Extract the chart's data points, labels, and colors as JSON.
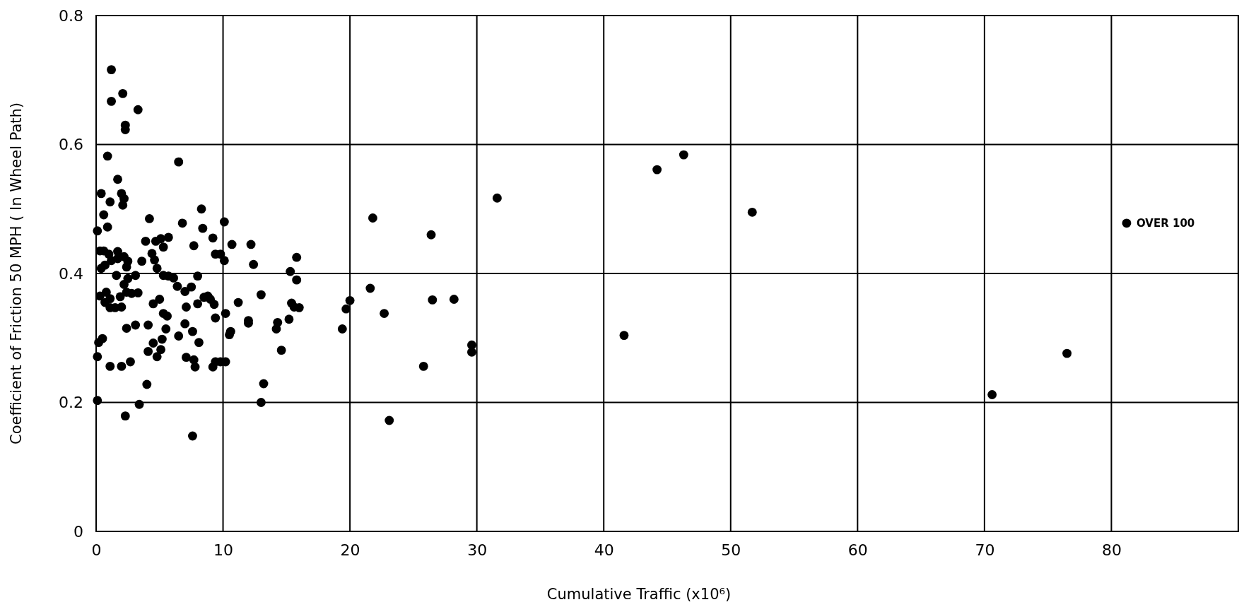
{
  "chart_data": {
    "type": "scatter",
    "xlabel": "Cumulative Traffic (x10⁶)",
    "ylabel": "Coefficient of Friction 50 MPH ( In Wheel Path)",
    "xlim": [
      0,
      90
    ],
    "ylim": [
      0,
      0.8
    ],
    "xticks": [
      0,
      10,
      20,
      30,
      40,
      50,
      60,
      70,
      80
    ],
    "yticks": [
      0,
      0.2,
      0.4,
      0.6,
      0.8
    ],
    "grid": true,
    "marker": "circle",
    "color": "#000000",
    "x": [
      1.2,
      1.2,
      2.1,
      2.3,
      2.3,
      3.3,
      0.9,
      6.5,
      1.7,
      0.4,
      2.0,
      2.2,
      2.1,
      1.1,
      0.6,
      0.9,
      0.1,
      4.2,
      3.9,
      8.3,
      6.8,
      8.4,
      10.1,
      9.2,
      5.7,
      5.1,
      4.7,
      5.3,
      7.7,
      9.4,
      9.8,
      10.1,
      10.7,
      12.2,
      12.4,
      15.8,
      4.4,
      4.6,
      4.8,
      3.6,
      2.5,
      1.7,
      0.7,
      1.2,
      0.3,
      0.6,
      1.0,
      0.4,
      1.7,
      2.2,
      2.4,
      3.1,
      1.6,
      2.5,
      2.2,
      5.3,
      5.7,
      6.1,
      7.0,
      6.4,
      7.5,
      8.0,
      8.8,
      8.5,
      9.0,
      9.3,
      8.0,
      7.1,
      5.0,
      4.5,
      3.3,
      2.8,
      2.4,
      1.9,
      1.1,
      0.8,
      0.7,
      1.1,
      1.5,
      2.0,
      0.3,
      10.2,
      9.4,
      11.2,
      13.0,
      15.2,
      15.4,
      15.6,
      16.0,
      15.8,
      15.3,
      5.3,
      5.6,
      7.6,
      7.0,
      4.1,
      3.1,
      5.5,
      2.4,
      12.0,
      12.0,
      10.6,
      10.5,
      14.3,
      14.2,
      14.6,
      4.5,
      5.2,
      5.1,
      4.1,
      4.8,
      6.5,
      8.1,
      7.1,
      7.7,
      7.8,
      9.2,
      9.4,
      9.8,
      10.2,
      2.7,
      2.0,
      1.1,
      0.1,
      0.2,
      0.5,
      4.0,
      13.2,
      0.1,
      3.4,
      13.0,
      2.3,
      7.6,
      21.8,
      26.4,
      31.6,
      21.6,
      20.0,
      19.7,
      19.4,
      22.7,
      26.5,
      28.2,
      29.6,
      29.6,
      25.8,
      23.1,
      44.2,
      46.3,
      51.7,
      41.6,
      70.6,
      76.5,
      81.2
    ],
    "values": [
      0.716,
      0.667,
      0.679,
      0.623,
      0.63,
      0.654,
      0.582,
      0.573,
      0.546,
      0.524,
      0.524,
      0.516,
      0.506,
      0.511,
      0.491,
      0.472,
      0.466,
      0.485,
      0.45,
      0.5,
      0.478,
      0.47,
      0.48,
      0.455,
      0.456,
      0.454,
      0.45,
      0.441,
      0.443,
      0.43,
      0.43,
      0.42,
      0.445,
      0.445,
      0.414,
      0.425,
      0.431,
      0.421,
      0.408,
      0.419,
      0.419,
      0.423,
      0.413,
      0.42,
      0.435,
      0.435,
      0.43,
      0.408,
      0.434,
      0.426,
      0.41,
      0.397,
      0.397,
      0.392,
      0.383,
      0.397,
      0.396,
      0.393,
      0.372,
      0.38,
      0.379,
      0.396,
      0.365,
      0.363,
      0.36,
      0.352,
      0.353,
      0.348,
      0.36,
      0.353,
      0.37,
      0.369,
      0.371,
      0.364,
      0.361,
      0.371,
      0.355,
      0.347,
      0.347,
      0.348,
      0.365,
      0.338,
      0.331,
      0.355,
      0.367,
      0.329,
      0.354,
      0.348,
      0.347,
      0.39,
      0.403,
      0.338,
      0.334,
      0.31,
      0.322,
      0.32,
      0.32,
      0.314,
      0.315,
      0.323,
      0.327,
      0.31,
      0.305,
      0.324,
      0.314,
      0.281,
      0.292,
      0.298,
      0.282,
      0.279,
      0.271,
      0.303,
      0.293,
      0.27,
      0.266,
      0.255,
      0.255,
      0.263,
      0.263,
      0.263,
      0.263,
      0.256,
      0.256,
      0.271,
      0.293,
      0.299,
      0.228,
      0.229,
      0.203,
      0.197,
      0.2,
      0.179,
      0.148,
      0.486,
      0.46,
      0.517,
      0.377,
      0.358,
      0.345,
      0.314,
      0.338,
      0.359,
      0.36,
      0.289,
      0.278,
      0.256,
      0.172,
      0.561,
      0.584,
      0.495,
      0.304,
      0.212,
      0.276,
      0.478
    ],
    "annotations": [
      {
        "text": "OVER 100",
        "x": 81.2,
        "y": 0.478
      }
    ]
  }
}
